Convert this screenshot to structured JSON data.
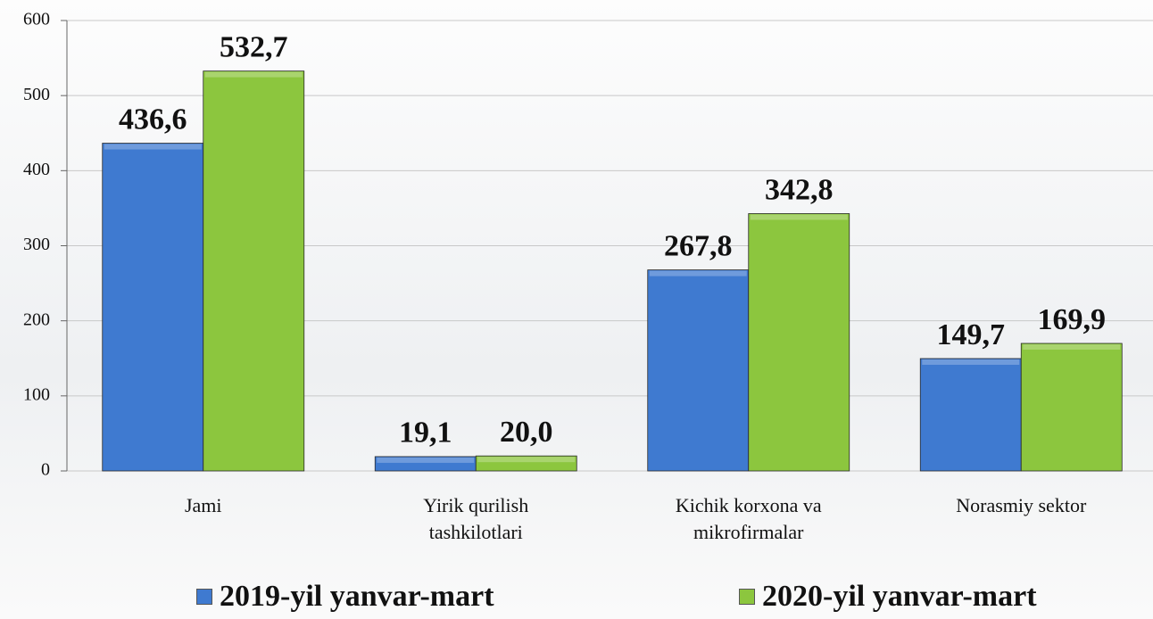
{
  "chart_data": {
    "type": "bar",
    "categories": [
      "Jami",
      "Yirik qurilish tashkilotlari",
      "Kichik korxona va mikrofirmalar",
      "Norasmiy sektor"
    ],
    "series": [
      {
        "name": "2019-yil yanvar-mart",
        "color": "#3f7ad0",
        "values": [
          436.6,
          19.1,
          267.8,
          149.7
        ],
        "value_labels": [
          "436,6",
          "19,1",
          "267,8",
          "149,7"
        ]
      },
      {
        "name": "2020-yil yanvar-mart",
        "color": "#8cc63e",
        "values": [
          532.7,
          20.0,
          342.8,
          169.9
        ],
        "value_labels": [
          "532,7",
          "20,0",
          "342,8",
          "169,9"
        ]
      }
    ],
    "ylim": [
      0,
      600
    ],
    "yticks": [
      0,
      100,
      200,
      300,
      400,
      500,
      600
    ],
    "grid": true,
    "legend": "bottom"
  }
}
